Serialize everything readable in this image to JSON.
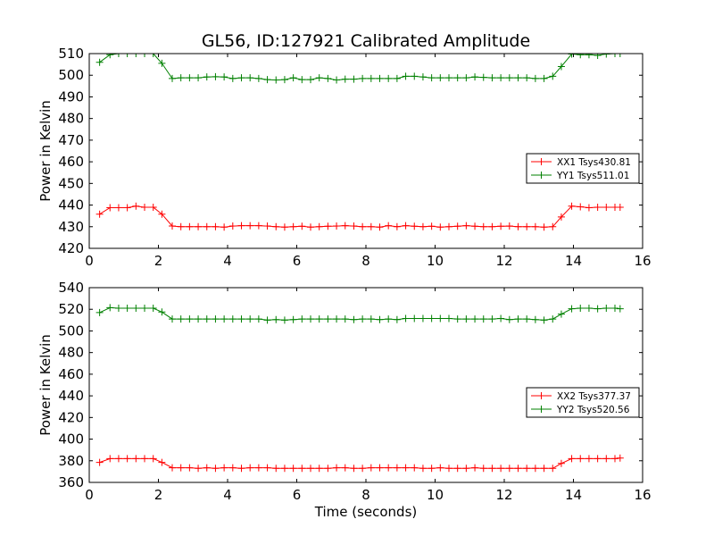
{
  "figure_title": "GL56, ID:127921 Calibrated Amplitude",
  "colors": {
    "xx": "#ff0000",
    "yy": "#008000",
    "axes": "#000000"
  },
  "chart_data": [
    {
      "type": "line",
      "title": "GL56, ID:127921 Calibrated Amplitude",
      "xlabel": "",
      "ylabel": "Power in Kelvin",
      "xlim": [
        0,
        16
      ],
      "ylim": [
        420,
        510
      ],
      "xticks": [
        0,
        2,
        4,
        6,
        8,
        10,
        12,
        14,
        16
      ],
      "yticks": [
        420,
        430,
        440,
        450,
        460,
        470,
        480,
        490,
        500,
        510
      ],
      "grid": false,
      "legend_position": "right",
      "x": [
        0.3,
        0.6,
        0.85,
        1.1,
        1.35,
        1.6,
        1.85,
        2.1,
        2.4,
        2.65,
        2.9,
        3.15,
        3.4,
        3.65,
        3.9,
        4.15,
        4.4,
        4.65,
        4.9,
        5.15,
        5.4,
        5.65,
        5.9,
        6.15,
        6.4,
        6.65,
        6.9,
        7.15,
        7.4,
        7.65,
        7.9,
        8.15,
        8.4,
        8.65,
        8.9,
        9.15,
        9.4,
        9.65,
        9.9,
        10.15,
        10.4,
        10.65,
        10.9,
        11.15,
        11.4,
        11.65,
        11.9,
        12.15,
        12.4,
        12.65,
        12.9,
        13.15,
        13.4,
        13.65,
        13.95,
        14.2,
        14.45,
        14.7,
        14.95,
        15.2,
        15.35
      ],
      "series": [
        {
          "name": "XX1 Tsys430.81",
          "color": "#ff0000",
          "values": [
            435.8,
            438.8,
            438.8,
            438.8,
            439.5,
            439.0,
            439.0,
            435.8,
            430.3,
            430.0,
            430.0,
            430.0,
            430.0,
            430.0,
            429.8,
            430.3,
            430.5,
            430.5,
            430.5,
            430.3,
            430.0,
            429.8,
            430.0,
            430.2,
            429.8,
            430.0,
            430.2,
            430.3,
            430.5,
            430.3,
            430.0,
            430.0,
            429.8,
            430.5,
            430.0,
            430.5,
            430.2,
            430.0,
            430.2,
            429.8,
            430.0,
            430.2,
            430.5,
            430.2,
            430.0,
            430.0,
            430.2,
            430.3,
            430.0,
            430.0,
            430.0,
            429.8,
            430.0,
            434.5,
            439.5,
            439.2,
            438.8,
            439.0,
            439.0,
            439.0,
            439.0
          ]
        },
        {
          "name": "YY1 Tsys511.01",
          "color": "#008000",
          "values": [
            506.0,
            509.5,
            510.0,
            510.0,
            510.0,
            510.0,
            510.0,
            505.5,
            498.5,
            498.8,
            498.8,
            498.8,
            499.2,
            499.3,
            499.2,
            498.5,
            498.8,
            498.8,
            498.5,
            498.0,
            497.8,
            498.0,
            498.8,
            498.0,
            498.0,
            498.8,
            498.5,
            497.8,
            498.2,
            498.2,
            498.5,
            498.5,
            498.5,
            498.5,
            498.5,
            499.5,
            499.5,
            499.2,
            498.8,
            498.8,
            498.8,
            498.8,
            498.8,
            499.2,
            499.0,
            498.8,
            498.8,
            498.8,
            498.8,
            498.8,
            498.5,
            498.5,
            499.5,
            504.0,
            509.8,
            509.5,
            509.5,
            509.2,
            509.8,
            510.0,
            510.0
          ]
        }
      ]
    },
    {
      "type": "line",
      "title": "",
      "xlabel": "Time (seconds)",
      "ylabel": "Power in Kelvin",
      "xlim": [
        0,
        16
      ],
      "ylim": [
        360,
        540
      ],
      "xticks": [
        0,
        2,
        4,
        6,
        8,
        10,
        12,
        14,
        16
      ],
      "yticks": [
        360,
        380,
        400,
        420,
        440,
        460,
        480,
        500,
        520,
        540
      ],
      "grid": false,
      "legend_position": "right",
      "x": [
        0.3,
        0.6,
        0.85,
        1.1,
        1.35,
        1.6,
        1.85,
        2.1,
        2.4,
        2.65,
        2.9,
        3.15,
        3.4,
        3.65,
        3.9,
        4.15,
        4.4,
        4.65,
        4.9,
        5.15,
        5.4,
        5.65,
        5.9,
        6.15,
        6.4,
        6.65,
        6.9,
        7.15,
        7.4,
        7.65,
        7.9,
        8.15,
        8.4,
        8.65,
        8.9,
        9.15,
        9.4,
        9.65,
        9.9,
        10.15,
        10.4,
        10.65,
        10.9,
        11.15,
        11.4,
        11.65,
        11.9,
        12.15,
        12.4,
        12.65,
        12.9,
        13.15,
        13.4,
        13.65,
        13.95,
        14.2,
        14.45,
        14.7,
        14.95,
        15.2,
        15.35
      ],
      "series": [
        {
          "name": "XX2 Tsys377.37",
          "color": "#ff0000",
          "values": [
            378.5,
            382.0,
            382.0,
            382.0,
            382.0,
            382.0,
            382.0,
            378.5,
            373.5,
            373.5,
            373.5,
            373.0,
            373.5,
            373.0,
            373.5,
            373.5,
            373.0,
            373.5,
            373.5,
            373.5,
            373.0,
            373.0,
            373.0,
            373.0,
            373.0,
            373.0,
            373.0,
            373.5,
            373.5,
            373.0,
            373.0,
            373.5,
            373.5,
            373.5,
            373.5,
            373.5,
            373.5,
            373.0,
            373.0,
            373.5,
            373.0,
            373.0,
            373.0,
            373.5,
            373.0,
            373.0,
            373.0,
            373.0,
            373.0,
            373.0,
            373.0,
            373.0,
            373.0,
            377.5,
            382.0,
            382.0,
            382.0,
            382.0,
            382.0,
            382.0,
            382.5
          ]
        },
        {
          "name": "YY2 Tsys520.56",
          "color": "#008000",
          "values": [
            517.0,
            521.5,
            521.0,
            521.0,
            521.0,
            521.0,
            521.0,
            517.5,
            511.0,
            511.0,
            511.0,
            511.0,
            511.0,
            511.0,
            511.0,
            511.0,
            511.0,
            511.0,
            511.0,
            510.0,
            510.5,
            510.0,
            510.5,
            511.0,
            511.0,
            511.0,
            511.0,
            511.0,
            511.0,
            510.5,
            511.0,
            511.0,
            510.5,
            511.0,
            510.5,
            511.5,
            511.5,
            511.5,
            511.5,
            511.5,
            511.5,
            511.0,
            511.0,
            511.0,
            511.0,
            511.0,
            511.5,
            510.5,
            511.0,
            511.0,
            510.5,
            510.0,
            511.0,
            515.5,
            520.5,
            521.0,
            521.0,
            520.5,
            521.0,
            521.0,
            520.5
          ]
        }
      ]
    }
  ]
}
